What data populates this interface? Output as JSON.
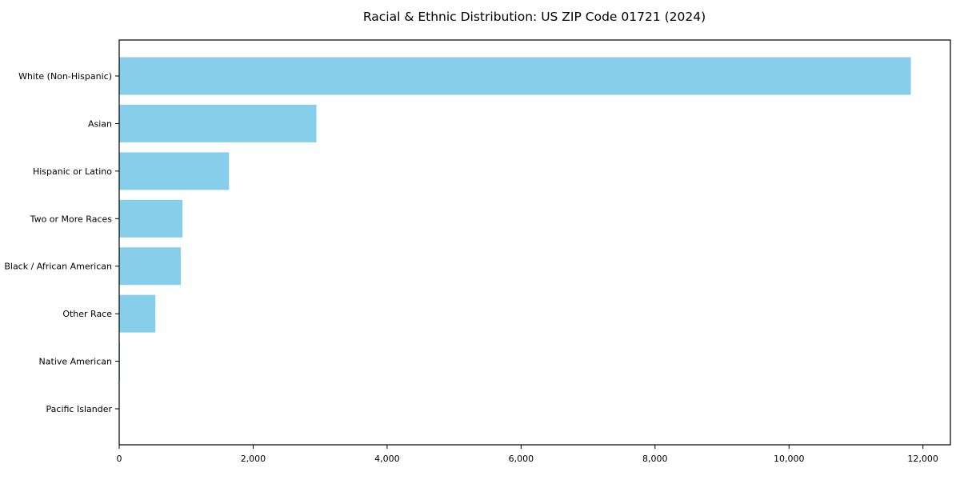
{
  "chart_data": {
    "type": "bar",
    "orientation": "horizontal",
    "title": "Racial & Ethnic Distribution: US ZIP Code 01721 (2024)",
    "xlabel": "",
    "ylabel": "",
    "categories": [
      "White (Non-Hispanic)",
      "Asian",
      "Hispanic or Latino",
      "Two or More Races",
      "Black / African American",
      "Other Race",
      "Native American",
      "Pacific Islander"
    ],
    "values": [
      11820,
      2945,
      1640,
      945,
      920,
      540,
      12,
      3
    ],
    "xlim": [
      0,
      12410
    ],
    "x_ticks": [
      {
        "value": 0,
        "label": "0"
      },
      {
        "value": 2000,
        "label": "2,000"
      },
      {
        "value": 4000,
        "label": "4,000"
      },
      {
        "value": 6000,
        "label": "6,000"
      },
      {
        "value": 8000,
        "label": "8,000"
      },
      {
        "value": 10000,
        "label": "10,000"
      },
      {
        "value": 12000,
        "label": "12,000"
      }
    ],
    "grid": false,
    "legend": null,
    "colors": {
      "bar": "#87CEEB",
      "axis": "#000000",
      "text": "#000000",
      "background": "#ffffff"
    }
  }
}
